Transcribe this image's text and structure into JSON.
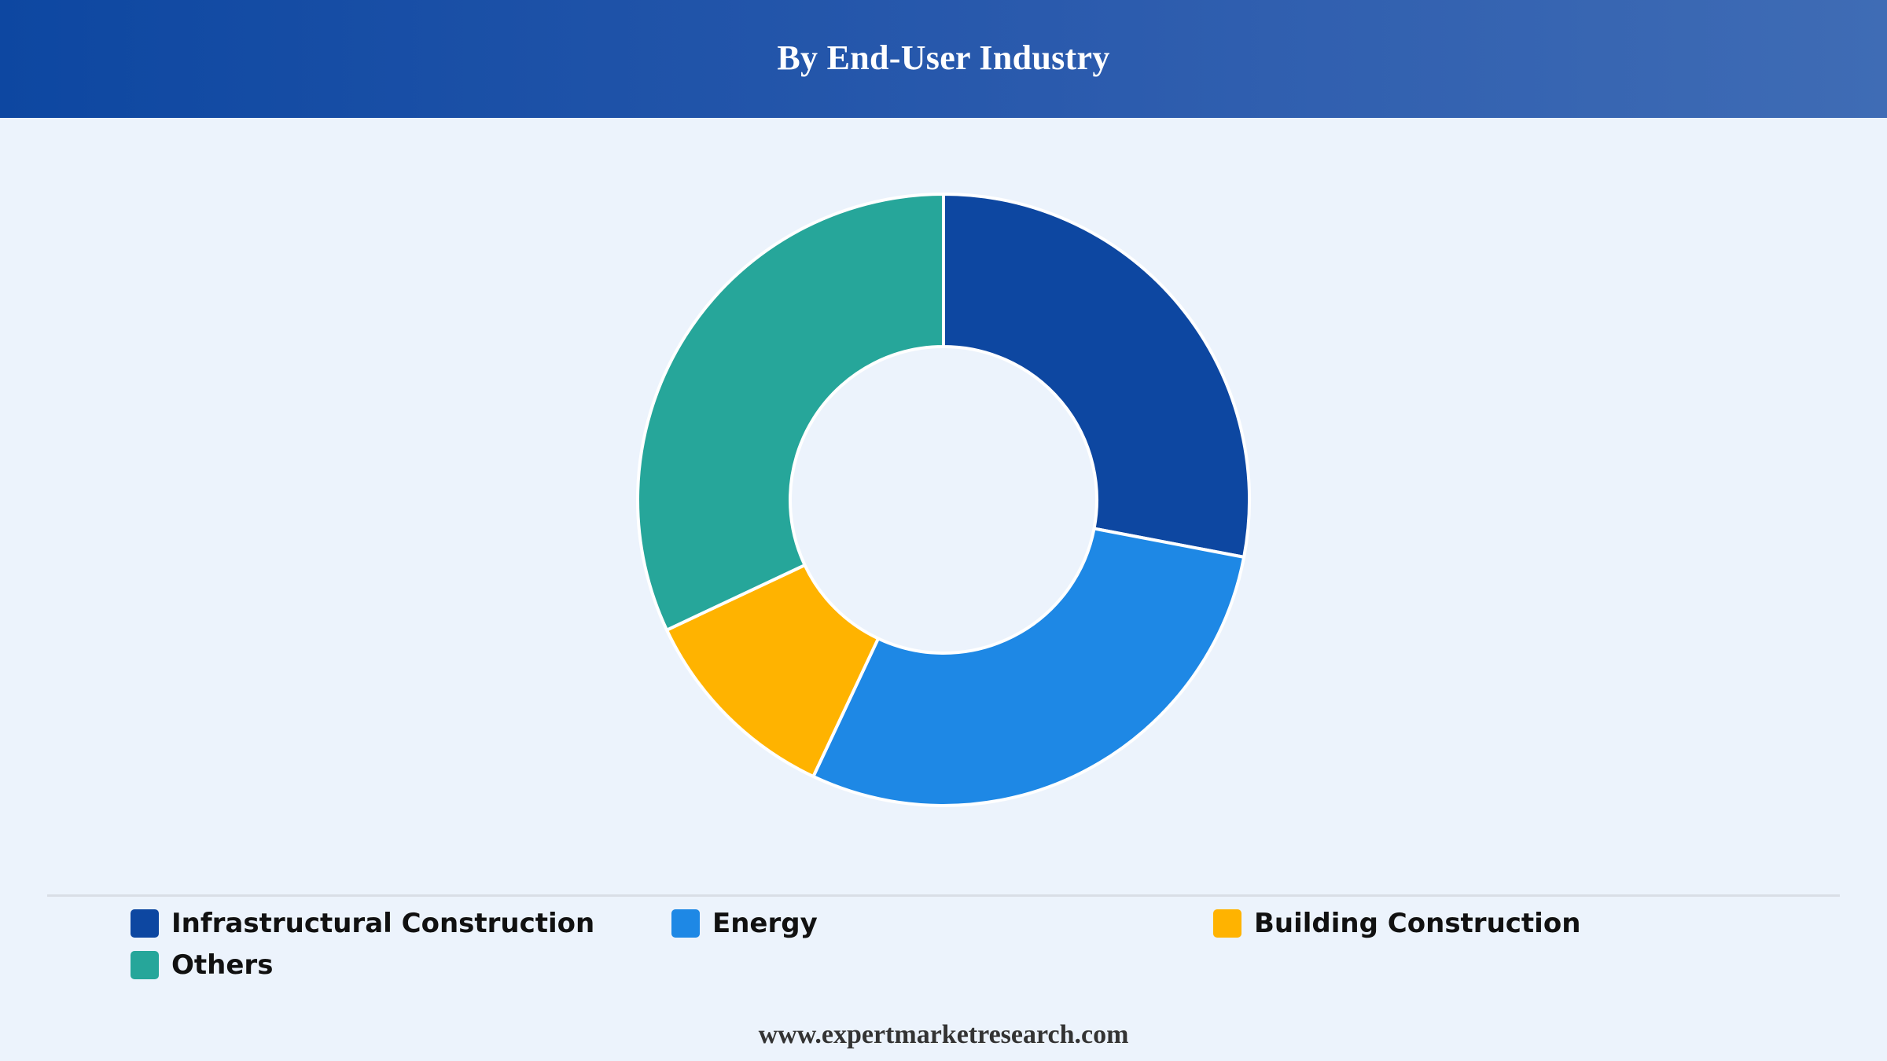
{
  "header": {
    "title": "By End-User Industry"
  },
  "footer": {
    "website": "www.expertmarketresearch.com"
  },
  "colors": {
    "header_start": "#0d47a1",
    "header_end": "#3f6cb5",
    "background": "#ecf3fc",
    "slice_border": "#ffffff"
  },
  "chart_data": {
    "type": "pie",
    "variant": "donut",
    "title": "By End-User Industry",
    "categories": [
      "Infrastructural Construction",
      "Energy",
      "Building Construction",
      "Others"
    ],
    "values": [
      28,
      29,
      11,
      32
    ],
    "colors": [
      "#0d47a1",
      "#1e88e5",
      "#ffb300",
      "#26a69a"
    ],
    "start_angle": "12 o'clock",
    "direction": "clockwise",
    "legend": {
      "position": "bottom",
      "items": [
        {
          "label": "Infrastructural Construction",
          "color": "#0d47a1"
        },
        {
          "label": "Energy",
          "color": "#1e88e5"
        },
        {
          "label": "Building Construction",
          "color": "#ffb300"
        },
        {
          "label": "Others",
          "color": "#26a69a"
        }
      ]
    }
  }
}
